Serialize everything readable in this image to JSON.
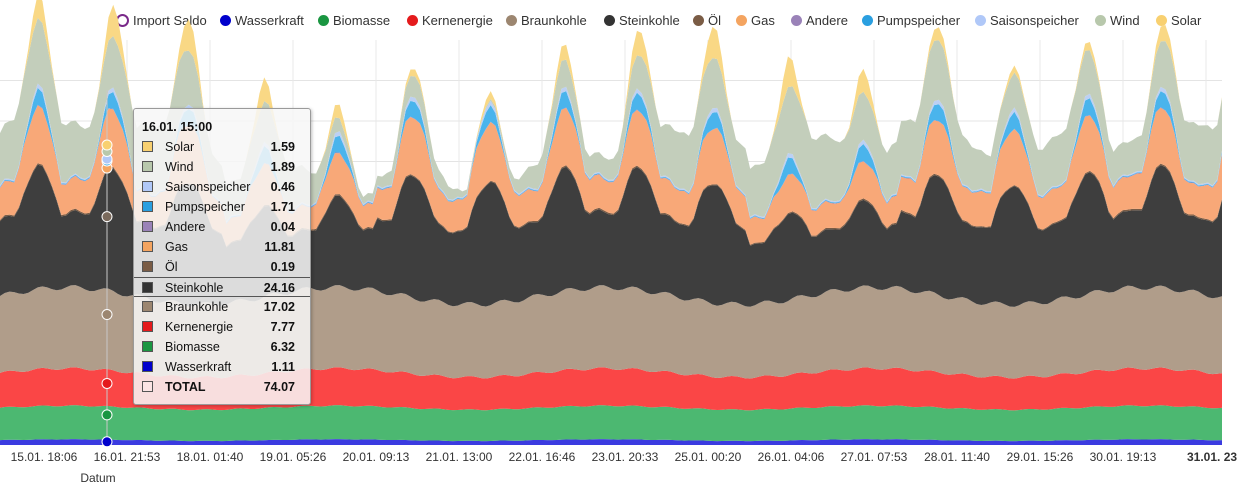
{
  "legend": [
    {
      "name": "Import Saldo",
      "color": "#ffffff",
      "border": "#7a2a8a",
      "ring": true
    },
    {
      "name": "Wasserkraft",
      "color": "#0000cc"
    },
    {
      "name": "Biomasse",
      "color": "#1a9641"
    },
    {
      "name": "Kernenergie",
      "color": "#e41a1c"
    },
    {
      "name": "Braunkohle",
      "color": "#9c8670"
    },
    {
      "name": "Steinkohle",
      "color": "#333333"
    },
    {
      "name": "Öl",
      "color": "#7a5c45"
    },
    {
      "name": "Gas",
      "color": "#f4a460"
    },
    {
      "name": "Andere",
      "color": "#9a82b8"
    },
    {
      "name": "Pumpspeicher",
      "color": "#2a9fe0"
    },
    {
      "name": "Saisonspeicher",
      "color": "#b0c8f8"
    },
    {
      "name": "Wind",
      "color": "#b8c8ac"
    },
    {
      "name": "Solar",
      "color": "#f8d070"
    }
  ],
  "chart_data": {
    "type": "area",
    "stacked": true,
    "xlabel": "Datum",
    "ylabel": "",
    "ylim": [
      0,
      100
    ],
    "grid": true,
    "x_ticks": [
      "15.01. 18:06",
      "16.01. 21:53",
      "18.01. 01:40",
      "19.01. 05:26",
      "20.01. 09:13",
      "21.01. 13:00",
      "22.01. 16:46",
      "23.01. 20:33",
      "25.01. 00:20",
      "26.01. 04:06",
      "27.01. 07:53",
      "28.01. 11:40",
      "29.01. 15:26",
      "30.01. 19:13",
      "31.01. 23"
    ],
    "series": [
      {
        "name": "Wasserkraft",
        "color": "#3b3be0",
        "mode": "flat",
        "base": 1.2,
        "amp": 0.2
      },
      {
        "name": "Biomasse",
        "color": "#4cb871",
        "mode": "flat",
        "base": 8.0,
        "amp": 0.3
      },
      {
        "name": "Kernenergie",
        "color": "#fa4646",
        "mode": "flat",
        "base": 8.6,
        "amp": 0.6
      },
      {
        "name": "Braunkohle",
        "color": "#b09d8a",
        "mode": "flat",
        "base": 19.0,
        "amp": 1.0
      },
      {
        "name": "Steinkohle",
        "color": "#3e3e3e",
        "mode": "cyc",
        "base": 9,
        "amp": 21
      },
      {
        "name": "Öl",
        "color": "#7a5c45",
        "mode": "flat",
        "base": 0.3,
        "amp": 0.05
      },
      {
        "name": "Gas",
        "color": "#f8a878",
        "mode": "cyc",
        "base": 3,
        "amp": 11
      },
      {
        "name": "Andere",
        "color": "#9a82b8",
        "mode": "flat",
        "base": 0.1,
        "amp": 0.02
      },
      {
        "name": "Pumpspeicher",
        "color": "#4ab4ec",
        "mode": "peak",
        "base": 0.2,
        "amp": 4
      },
      {
        "name": "Saisonspeicher",
        "color": "#bcd0f4",
        "mode": "peak",
        "base": 0.3,
        "amp": 0.8
      },
      {
        "name": "Wind",
        "color": "#c3cebb",
        "mode": "wind",
        "base": 2,
        "amp": 16
      },
      {
        "name": "Solar",
        "color": "#f9d885",
        "mode": "solar",
        "base": 0,
        "amp": 8
      }
    ]
  },
  "tooltip": {
    "title": "16.01. 15:00",
    "rows": [
      {
        "name": "Solar",
        "value": "1.59",
        "color": "#f8d070"
      },
      {
        "name": "Wind",
        "value": "1.89",
        "color": "#b8c8ac"
      },
      {
        "name": "Saisonspeicher",
        "value": "0.46",
        "color": "#b0c8f8"
      },
      {
        "name": "Pumpspeicher",
        "value": "1.71",
        "color": "#2a9fe0"
      },
      {
        "name": "Andere",
        "value": "0.04",
        "color": "#9a82b8"
      },
      {
        "name": "Gas",
        "value": "11.81",
        "color": "#f4a460"
      },
      {
        "name": "Öl",
        "value": "0.19",
        "color": "#7a5c45"
      },
      {
        "name": "Steinkohle",
        "value": "24.16",
        "color": "#333333",
        "highlight": true
      },
      {
        "name": "Braunkohle",
        "value": "17.02",
        "color": "#9c8670"
      },
      {
        "name": "Kernenergie",
        "value": "7.77",
        "color": "#e41a1c"
      },
      {
        "name": "Biomasse",
        "value": "6.32",
        "color": "#1a9641"
      },
      {
        "name": "Wasserkraft",
        "value": "1.11",
        "color": "#0000cc"
      },
      {
        "name": "TOTAL",
        "value": "74.07",
        "color": "#fbe4e4",
        "total": true
      }
    ]
  }
}
